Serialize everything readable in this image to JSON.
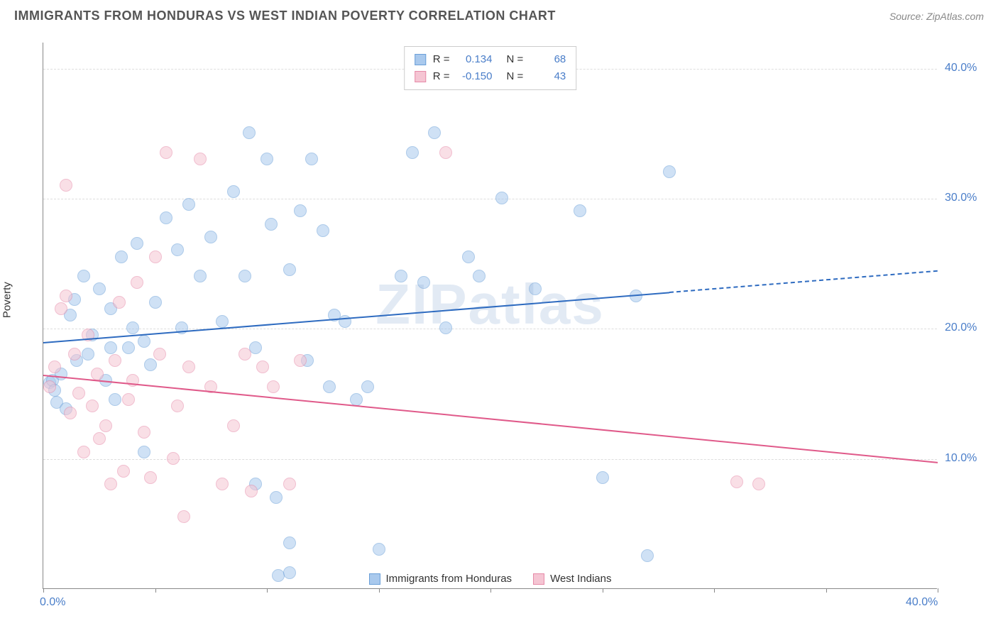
{
  "title": "IMMIGRANTS FROM HONDURAS VS WEST INDIAN POVERTY CORRELATION CHART",
  "source": "Source: ZipAtlas.com",
  "watermark": "ZIPatlas",
  "ylabel": "Poverty",
  "chart": {
    "type": "scatter",
    "xlim": [
      0,
      40
    ],
    "ylim": [
      0,
      42
    ],
    "xtick_positions": [
      0,
      5,
      10,
      15,
      20,
      25,
      30,
      35,
      40
    ],
    "ytick_positions": [
      10,
      20,
      30,
      40
    ],
    "xtick_labels": {
      "0": "0.0%",
      "40": "40.0%"
    },
    "ytick_labels": {
      "10": "10.0%",
      "20": "20.0%",
      "30": "30.0%",
      "40": "40.0%"
    },
    "grid_color": "#dddddd",
    "axis_color": "#888888",
    "label_color": "#4a7ec9",
    "background_color": "#ffffff",
    "point_radius": 9,
    "point_opacity": 0.55,
    "series": [
      {
        "name": "Immigrants from Honduras",
        "fill": "#a9c9ed",
        "stroke": "#6a9fd8",
        "trend_color": "#2e6bc0",
        "trend": {
          "y_at_x0": 19.0,
          "y_at_x40": 24.5,
          "solid_until_x": 28
        },
        "R": "0.134",
        "N": "68",
        "points": [
          [
            0.3,
            15.8
          ],
          [
            0.4,
            16.0
          ],
          [
            0.5,
            15.2
          ],
          [
            0.6,
            14.3
          ],
          [
            0.8,
            16.5
          ],
          [
            1.0,
            13.8
          ],
          [
            1.2,
            21.0
          ],
          [
            1.4,
            22.2
          ],
          [
            1.5,
            17.5
          ],
          [
            1.8,
            24.0
          ],
          [
            2.0,
            18.0
          ],
          [
            2.2,
            19.5
          ],
          [
            2.5,
            23.0
          ],
          [
            2.8,
            16.0
          ],
          [
            3.0,
            21.5
          ],
          [
            3.2,
            14.5
          ],
          [
            3.5,
            25.5
          ],
          [
            3.8,
            18.5
          ],
          [
            4.0,
            20.0
          ],
          [
            4.2,
            26.5
          ],
          [
            4.5,
            19.0
          ],
          [
            4.8,
            17.2
          ],
          [
            5.0,
            22.0
          ],
          [
            5.5,
            28.5
          ],
          [
            6.0,
            26.0
          ],
          [
            6.2,
            20.0
          ],
          [
            6.5,
            29.5
          ],
          [
            7.0,
            24.0
          ],
          [
            7.5,
            27.0
          ],
          [
            8.0,
            20.5
          ],
          [
            8.5,
            30.5
          ],
          [
            9.0,
            24.0
          ],
          [
            9.2,
            35.0
          ],
          [
            9.5,
            18.5
          ],
          [
            10.0,
            33.0
          ],
          [
            10.2,
            28.0
          ],
          [
            10.4,
            7.0
          ],
          [
            10.5,
            1.0
          ],
          [
            11.0,
            24.5
          ],
          [
            11.5,
            29.0
          ],
          [
            11.8,
            17.5
          ],
          [
            12.0,
            33.0
          ],
          [
            12.5,
            27.5
          ],
          [
            12.8,
            15.5
          ],
          [
            13.0,
            21.0
          ],
          [
            13.5,
            20.5
          ],
          [
            14.0,
            14.5
          ],
          [
            14.5,
            15.5
          ],
          [
            15.0,
            3.0
          ],
          [
            16.0,
            24.0
          ],
          [
            16.5,
            33.5
          ],
          [
            17.0,
            23.5
          ],
          [
            17.5,
            35.0
          ],
          [
            18.0,
            20.0
          ],
          [
            19.0,
            25.5
          ],
          [
            19.5,
            24.0
          ],
          [
            20.5,
            30.0
          ],
          [
            22.0,
            23.0
          ],
          [
            24.0,
            29.0
          ],
          [
            25.0,
            8.5
          ],
          [
            26.5,
            22.5
          ],
          [
            27.0,
            2.5
          ],
          [
            28.0,
            32.0
          ],
          [
            9.5,
            8.0
          ],
          [
            11.0,
            3.5
          ],
          [
            4.5,
            10.5
          ],
          [
            11.0,
            1.2
          ],
          [
            3.0,
            18.5
          ]
        ]
      },
      {
        "name": "West Indians",
        "fill": "#f5c5d3",
        "stroke": "#e68aa8",
        "trend_color": "#e05a8a",
        "trend": {
          "y_at_x0": 16.5,
          "y_at_x40": 9.8,
          "solid_until_x": 40
        },
        "R": "-0.150",
        "N": "43",
        "points": [
          [
            0.3,
            15.5
          ],
          [
            0.5,
            17.0
          ],
          [
            0.8,
            21.5
          ],
          [
            1.0,
            22.5
          ],
          [
            1.2,
            13.5
          ],
          [
            1.4,
            18.0
          ],
          [
            1.6,
            15.0
          ],
          [
            1.8,
            10.5
          ],
          [
            2.0,
            19.5
          ],
          [
            2.2,
            14.0
          ],
          [
            2.4,
            16.5
          ],
          [
            2.5,
            11.5
          ],
          [
            2.8,
            12.5
          ],
          [
            3.0,
            8.0
          ],
          [
            3.2,
            17.5
          ],
          [
            3.4,
            22.0
          ],
          [
            3.6,
            9.0
          ],
          [
            3.8,
            14.5
          ],
          [
            4.0,
            16.0
          ],
          [
            4.2,
            23.5
          ],
          [
            4.5,
            12.0
          ],
          [
            4.8,
            8.5
          ],
          [
            5.0,
            25.5
          ],
          [
            5.2,
            18.0
          ],
          [
            5.5,
            33.5
          ],
          [
            5.8,
            10.0
          ],
          [
            6.0,
            14.0
          ],
          [
            6.3,
            5.5
          ],
          [
            6.5,
            17.0
          ],
          [
            7.0,
            33.0
          ],
          [
            7.5,
            15.5
          ],
          [
            8.0,
            8.0
          ],
          [
            8.5,
            12.5
          ],
          [
            9.0,
            18.0
          ],
          [
            9.3,
            7.5
          ],
          [
            9.8,
            17.0
          ],
          [
            10.3,
            15.5
          ],
          [
            11.0,
            8.0
          ],
          [
            11.5,
            17.5
          ],
          [
            18.0,
            33.5
          ],
          [
            31.0,
            8.2
          ],
          [
            32.0,
            8.0
          ],
          [
            1.0,
            31.0
          ]
        ]
      }
    ]
  },
  "legend_top": [
    {
      "series": 0,
      "R_label": "R =",
      "N_label": "N ="
    },
    {
      "series": 1,
      "R_label": "R =",
      "N_label": "N ="
    }
  ],
  "legend_bottom_labels": [
    "Immigrants from Honduras",
    "West Indians"
  ]
}
